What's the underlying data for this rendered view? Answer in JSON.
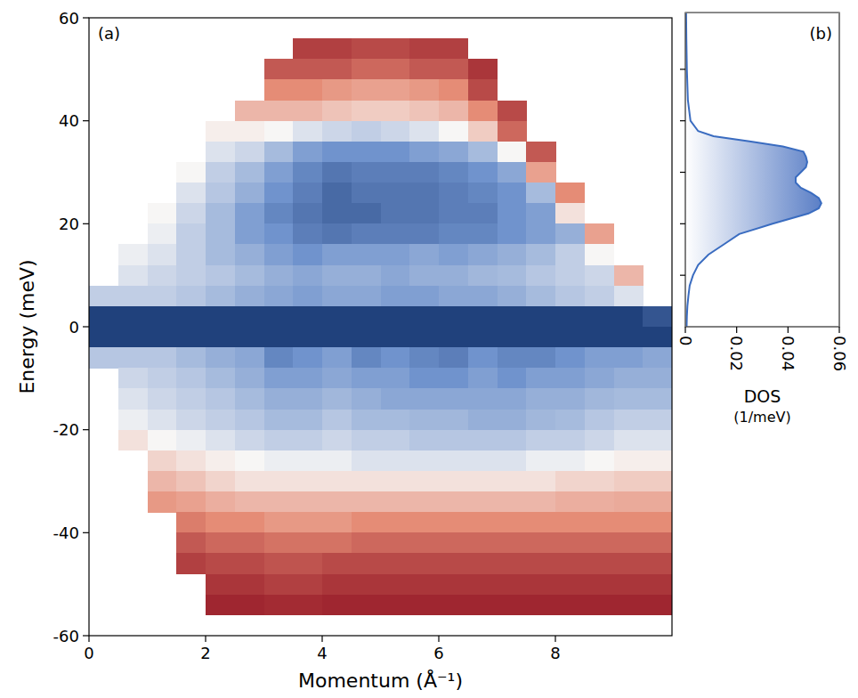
{
  "chart_data": [
    {
      "type": "heatmap",
      "label": "(a)",
      "x_label": "Momentum (Å⁻¹)",
      "y_label": "Energy (meV)",
      "xlim": [
        0,
        10
      ],
      "ylim": [
        -60,
        60
      ],
      "xticks": [
        0,
        2,
        4,
        6,
        8
      ],
      "yticks": [
        -60,
        -40,
        -20,
        0,
        20,
        40,
        60
      ],
      "zlim": [
        0,
        1
      ],
      "x": [
        0.25,
        0.75,
        1.25,
        1.75,
        2.25,
        2.75,
        3.25,
        3.75,
        4.25,
        4.75,
        5.25,
        5.75,
        6.25,
        6.75,
        7.25,
        7.75,
        8.25,
        8.75,
        9.25,
        9.75
      ],
      "y": [
        54,
        50,
        46,
        42,
        38,
        34,
        30,
        26,
        22,
        18,
        14,
        10,
        6,
        2,
        -2,
        -6,
        -10,
        -14,
        -18,
        -22,
        -26,
        -30,
        -34,
        -38,
        -42,
        -46,
        -50,
        -54
      ],
      "cells": [
        [
          null,
          null,
          null,
          null,
          null,
          null,
          null,
          0.1,
          0.1,
          0.12,
          0.12,
          0.1,
          0.1,
          null,
          null,
          null,
          null,
          null,
          null,
          null
        ],
        [
          null,
          null,
          null,
          null,
          null,
          null,
          0.15,
          0.15,
          0.15,
          0.18,
          0.18,
          0.15,
          0.15,
          0.08,
          null,
          null,
          null,
          null,
          null,
          null
        ],
        [
          null,
          null,
          null,
          null,
          null,
          null,
          0.25,
          0.25,
          0.28,
          0.3,
          0.3,
          0.28,
          0.25,
          0.12,
          null,
          null,
          null,
          null,
          null,
          null
        ],
        [
          null,
          null,
          null,
          null,
          null,
          0.35,
          0.35,
          0.35,
          0.38,
          0.4,
          0.4,
          0.38,
          0.35,
          0.25,
          0.12,
          null,
          null,
          null,
          null,
          null
        ],
        [
          null,
          null,
          null,
          null,
          0.48,
          0.48,
          0.5,
          0.55,
          0.58,
          0.6,
          0.58,
          0.55,
          0.5,
          0.4,
          0.18,
          null,
          null,
          null,
          null,
          null
        ],
        [
          null,
          null,
          null,
          null,
          0.55,
          0.58,
          0.65,
          0.72,
          0.75,
          0.75,
          0.75,
          0.72,
          0.7,
          0.65,
          0.5,
          0.15,
          null,
          null,
          null,
          null
        ],
        [
          null,
          null,
          null,
          0.5,
          0.6,
          0.65,
          0.72,
          0.78,
          0.82,
          0.8,
          0.8,
          0.8,
          0.78,
          0.75,
          0.7,
          0.3,
          null,
          null,
          null,
          null
        ],
        [
          null,
          null,
          null,
          0.55,
          0.62,
          0.68,
          0.75,
          0.8,
          0.85,
          0.82,
          0.82,
          0.82,
          0.8,
          0.78,
          0.75,
          0.65,
          0.25,
          null,
          null,
          null
        ],
        [
          null,
          null,
          0.5,
          0.58,
          0.65,
          0.72,
          0.78,
          0.82,
          0.85,
          0.85,
          0.82,
          0.82,
          0.8,
          0.8,
          0.75,
          0.72,
          0.45,
          null,
          null,
          null
        ],
        [
          null,
          null,
          0.52,
          0.6,
          0.65,
          0.72,
          0.75,
          0.8,
          0.82,
          0.8,
          0.8,
          0.8,
          0.78,
          0.78,
          0.75,
          0.72,
          0.68,
          0.3,
          null,
          null
        ],
        [
          null,
          0.52,
          0.55,
          0.6,
          0.65,
          0.68,
          0.72,
          0.75,
          0.72,
          0.72,
          0.72,
          0.7,
          0.72,
          0.7,
          0.68,
          0.65,
          0.6,
          0.5,
          null,
          null
        ],
        [
          null,
          0.55,
          0.58,
          0.6,
          0.62,
          0.65,
          0.68,
          0.7,
          0.68,
          0.68,
          0.7,
          0.68,
          0.68,
          0.66,
          0.65,
          0.62,
          0.6,
          0.58,
          0.35,
          null
        ],
        [
          0.6,
          0.6,
          0.6,
          0.62,
          0.65,
          0.68,
          0.7,
          0.72,
          0.7,
          0.7,
          0.72,
          0.72,
          0.7,
          0.7,
          0.68,
          0.65,
          0.62,
          0.6,
          0.55,
          null
        ],
        [
          0.95,
          0.95,
          0.95,
          0.95,
          0.95,
          0.95,
          0.95,
          0.95,
          0.95,
          0.95,
          0.95,
          0.95,
          0.95,
          0.95,
          0.95,
          0.95,
          0.95,
          0.95,
          0.95,
          0.9
        ],
        [
          0.95,
          0.95,
          0.95,
          0.95,
          0.95,
          0.95,
          0.95,
          0.95,
          0.95,
          0.95,
          0.95,
          0.95,
          0.95,
          0.95,
          0.95,
          0.95,
          0.95,
          0.95,
          0.95,
          0.95
        ],
        [
          0.62,
          0.62,
          0.62,
          0.65,
          0.68,
          0.7,
          0.78,
          0.75,
          0.72,
          0.78,
          0.75,
          0.78,
          0.8,
          0.75,
          0.78,
          0.78,
          0.75,
          0.72,
          0.72,
          0.7
        ],
        [
          null,
          0.58,
          0.6,
          0.62,
          0.65,
          0.68,
          0.72,
          0.72,
          0.7,
          0.72,
          0.72,
          0.75,
          0.75,
          0.72,
          0.75,
          0.72,
          0.72,
          0.7,
          0.68,
          0.68
        ],
        [
          null,
          0.55,
          0.58,
          0.6,
          0.62,
          0.65,
          0.68,
          0.68,
          0.66,
          0.68,
          0.7,
          0.7,
          0.7,
          0.7,
          0.7,
          0.68,
          0.68,
          0.66,
          0.65,
          0.65
        ],
        [
          null,
          0.52,
          0.55,
          0.58,
          0.6,
          0.62,
          0.65,
          0.65,
          0.62,
          0.65,
          0.65,
          0.66,
          0.66,
          0.68,
          0.68,
          0.66,
          0.65,
          0.62,
          0.6,
          0.6
        ],
        [
          null,
          0.45,
          0.5,
          0.52,
          0.55,
          0.58,
          0.6,
          0.6,
          0.58,
          0.6,
          0.6,
          0.62,
          0.62,
          0.62,
          0.62,
          0.6,
          0.6,
          0.58,
          0.55,
          0.55
        ],
        [
          null,
          null,
          0.42,
          0.45,
          0.48,
          0.5,
          0.52,
          0.52,
          0.52,
          0.55,
          0.55,
          0.55,
          0.55,
          0.55,
          0.55,
          0.52,
          0.52,
          0.5,
          0.48,
          0.48
        ],
        [
          null,
          null,
          0.35,
          0.38,
          0.42,
          0.45,
          0.45,
          0.45,
          0.45,
          0.45,
          0.45,
          0.45,
          0.45,
          0.45,
          0.45,
          0.45,
          0.42,
          0.42,
          0.4,
          0.4
        ],
        [
          null,
          null,
          0.28,
          0.3,
          0.33,
          0.35,
          0.35,
          0.35,
          0.35,
          0.35,
          0.35,
          0.35,
          0.35,
          0.35,
          0.35,
          0.35,
          0.33,
          0.33,
          0.32,
          0.32
        ],
        [
          null,
          null,
          null,
          0.22,
          0.25,
          0.25,
          0.28,
          0.28,
          0.28,
          0.25,
          0.25,
          0.25,
          0.25,
          0.25,
          0.25,
          0.25,
          0.25,
          0.25,
          0.25,
          0.25
        ],
        [
          null,
          null,
          null,
          0.15,
          0.18,
          0.18,
          0.2,
          0.2,
          0.2,
          0.18,
          0.18,
          0.18,
          0.18,
          0.18,
          0.18,
          0.18,
          0.18,
          0.18,
          0.18,
          0.18
        ],
        [
          null,
          null,
          null,
          0.1,
          0.12,
          0.12,
          0.14,
          0.14,
          0.12,
          0.12,
          0.12,
          0.12,
          0.12,
          0.12,
          0.12,
          0.12,
          0.12,
          0.12,
          0.12,
          0.12
        ],
        [
          null,
          null,
          null,
          null,
          0.08,
          0.08,
          0.1,
          0.1,
          0.08,
          0.08,
          0.08,
          0.08,
          0.08,
          0.08,
          0.08,
          0.08,
          0.08,
          0.08,
          0.08,
          0.08
        ],
        [
          null,
          null,
          null,
          null,
          0.05,
          0.05,
          0.06,
          0.06,
          0.05,
          0.05,
          0.05,
          0.05,
          0.05,
          0.05,
          0.05,
          0.05,
          0.05,
          0.05,
          0.05,
          0.05
        ]
      ]
    },
    {
      "type": "line",
      "label": "(b)",
      "x_label": [
        "DOS",
        "(1/meV)"
      ],
      "xlim": [
        0,
        0.06
      ],
      "ylim": [
        0,
        61
      ],
      "xticks": [
        0,
        0.02,
        0.04,
        0.06
      ],
      "yticks": [
        10,
        20,
        30,
        40,
        50
      ],
      "tick_labels": "x",
      "y": [
        0,
        2,
        4,
        6,
        8,
        10,
        12,
        14,
        16,
        18,
        20,
        22,
        23,
        24,
        25,
        26,
        27,
        28,
        29,
        30,
        31,
        32,
        33,
        34,
        35,
        36,
        37,
        38,
        40,
        44,
        50,
        56,
        61
      ],
      "series": [
        {
          "color": "#3a6cc0",
          "values": [
            0.0005,
            0.0006,
            0.0008,
            0.0012,
            0.0017,
            0.003,
            0.005,
            0.009,
            0.015,
            0.021,
            0.034,
            0.048,
            0.052,
            0.053,
            0.052,
            0.049,
            0.045,
            0.043,
            0.043,
            0.045,
            0.047,
            0.0475,
            0.047,
            0.046,
            0.038,
            0.025,
            0.011,
            0.005,
            0.002,
            0.001,
            0.0006,
            0.0004,
            0.0003
          ]
        }
      ]
    }
  ]
}
